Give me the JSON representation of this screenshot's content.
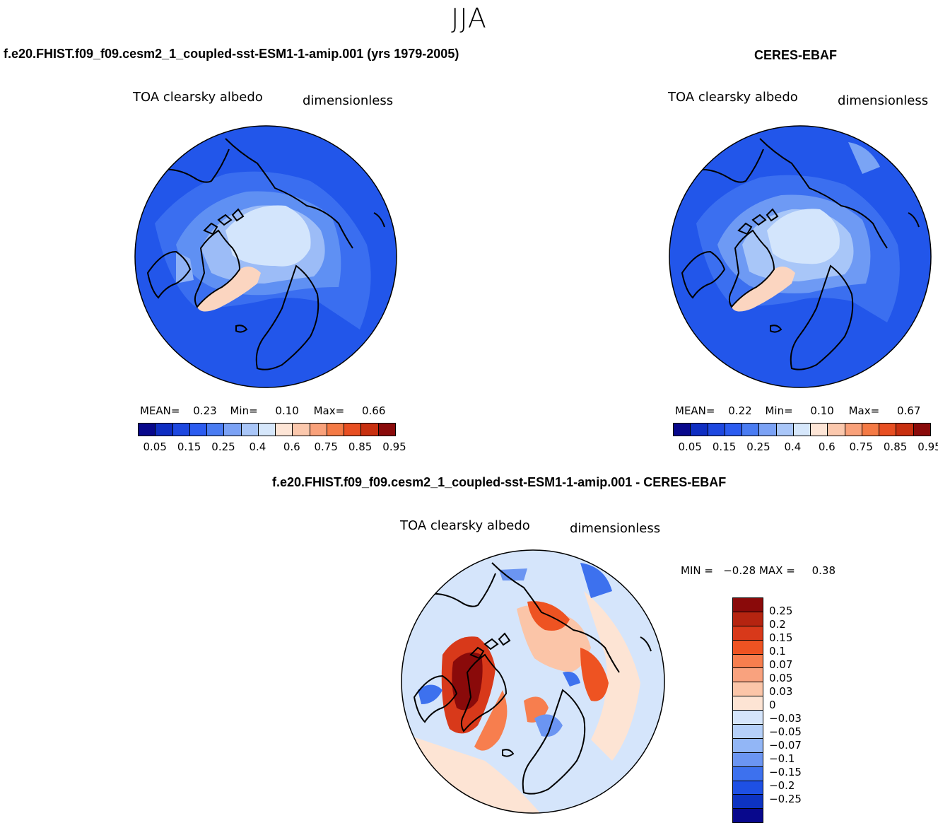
{
  "season": "JJA",
  "panels": [
    {
      "title": "f.e20.FHIST.f09_f09.cesm2_1_coupled-sst-ESM1-1-amip.001 (yrs 1979-2005)",
      "variable": "TOA clearsky albedo",
      "units": "dimensionless",
      "stats": {
        "mean_label": "MEAN=",
        "mean": "0.23",
        "min_label": "Min=",
        "min": "0.10",
        "max_label": "Max=",
        "max": "0.66"
      }
    },
    {
      "title": "CERES-EBAF",
      "variable": "TOA clearsky albedo",
      "units": "dimensionless",
      "stats": {
        "mean_label": "MEAN=",
        "mean": "0.22",
        "min_label": "Min=",
        "min": "0.10",
        "max_label": "Max=",
        "max": "0.67"
      }
    }
  ],
  "diff_panel": {
    "title": "f.e20.FHIST.f09_f09.cesm2_1_coupled-sst-ESM1-1-amip.001 - CERES-EBAF",
    "variable": "TOA clearsky albedo",
    "units": "dimensionless",
    "minmax_text": "MIN =   −0.28 MAX =     0.38"
  },
  "colorbar_abs": {
    "colors": [
      "#08088c",
      "#0f2ec2",
      "#1e48e0",
      "#2c5cf0",
      "#4a7cf2",
      "#7ba2f5",
      "#a9c6f8",
      "#d6e7fb",
      "#fde5d6",
      "#fbc8ad",
      "#f9a17a",
      "#f47a45",
      "#e84f22",
      "#c83010",
      "#8a0a0a"
    ],
    "labels": [
      "0.05",
      "0.15",
      "0.25",
      "0.4",
      "0.6",
      "0.75",
      "0.85",
      "0.95"
    ]
  },
  "colorbar_diff": {
    "colors": [
      "#8a0a0a",
      "#b52410",
      "#d8391a",
      "#ee5322",
      "#f77e4e",
      "#f9a27e",
      "#fbc5a8",
      "#fde4d4",
      "#d5e5fb",
      "#b5d0f9",
      "#92b6f6",
      "#6b95f2",
      "#3d71ee",
      "#1e50e4",
      "#0d33c2",
      "#08088c"
    ],
    "labels": [
      "0.25",
      "0.2",
      "0.15",
      "0.1",
      "0.07",
      "0.05",
      "0.03",
      "0",
      "−0.03",
      "−0.05",
      "−0.07",
      "−0.1",
      "−0.15",
      "−0.2",
      "−0.25"
    ]
  }
}
